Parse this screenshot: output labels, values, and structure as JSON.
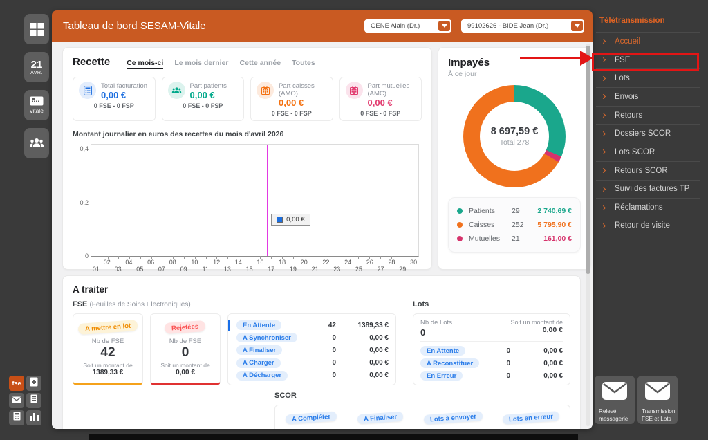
{
  "colors": {
    "header_orange": "#c95a22",
    "menu_accent": "#e06323",
    "annotation_red": "#e31515"
  },
  "header": {
    "title": "Tableau de bord SESAM-Vitale",
    "selects": [
      {
        "value": "GENE Alain (Dr.)"
      },
      {
        "value": "99102626 - BIDE Jean (Dr.)"
      }
    ]
  },
  "left_toolbar": {
    "calendar": {
      "day": "21",
      "month": "AVR."
    },
    "vitale_label": "vitale",
    "fse_label": "fse"
  },
  "recette": {
    "title": "Recette",
    "tabs": [
      {
        "label": "Ce mois-ci",
        "active": true
      },
      {
        "label": "Le mois dernier",
        "active": false
      },
      {
        "label": "Cette année",
        "active": false
      },
      {
        "label": "Toutes",
        "active": false
      }
    ],
    "stats": [
      {
        "icon": "calculator",
        "label": "Total facturation",
        "value": "0,00 €",
        "sub": "0 FSE - 0 FSP",
        "color": "#1d6fe0",
        "tint": "#e3edfc"
      },
      {
        "icon": "patients",
        "label": "Part patients",
        "value": "0,00 €",
        "sub": "0 FSE - 0 FSP",
        "color": "#00a98b",
        "tint": "#dcf3ee"
      },
      {
        "icon": "building",
        "label": "Part caisses (AMO)",
        "value": "0,00 €",
        "sub": "0 FSE - 0 FSP",
        "color": "#f4700f",
        "tint": "#fdeadd"
      },
      {
        "icon": "building",
        "label": "Part mutuelles (AMC)",
        "value": "0,00 €",
        "sub": "0 FSE - 0 FSP",
        "color": "#e23a6e",
        "tint": "#fbe3ec"
      }
    ],
    "chart_data": {
      "type": "line",
      "title": "Montant journalier en euros des recettes du mois d'avril 2026",
      "x_labels": [
        "01",
        "02",
        "03",
        "04",
        "05",
        "06",
        "07",
        "08",
        "09",
        "10",
        "11",
        "12",
        "13",
        "14",
        "15",
        "16",
        "17",
        "18",
        "19",
        "20",
        "21",
        "22",
        "23",
        "24",
        "25",
        "26",
        "27",
        "28",
        "29",
        "30"
      ],
      "yticks": [
        "0,4",
        "0,2",
        "0"
      ],
      "ylim": [
        0,
        0.44
      ],
      "series": [
        {
          "name": "0,00 €",
          "color": "#1d6fe0",
          "values": []
        }
      ],
      "today_line": {
        "x": 16.6,
        "color": "#e23ae2"
      },
      "legend_box_label": "0,00 €",
      "grid": true,
      "legend_position": "inside-right"
    }
  },
  "impayes": {
    "title": "Impayés",
    "subtitle": "À ce jour",
    "center_value": "8 697,59 €",
    "center_label": "Total 278",
    "chart_data": {
      "type": "pie",
      "title": "Impayés - À ce jour",
      "categories": [
        "Patients",
        "Caisses",
        "Mutuelles"
      ],
      "counts": [
        29,
        252,
        21
      ],
      "values": [
        2740.69,
        5795.9,
        161.0
      ],
      "total_value": 8697.59,
      "total_count": 278,
      "colors": [
        "#1aa78c",
        "#f0711d",
        "#d6336c"
      ],
      "clockwise_order_from_top": [
        "Patients",
        "Mutuelles",
        "Caisses"
      ]
    },
    "legend": [
      {
        "label": "Patients",
        "count": "29",
        "amount": "2 740,69 €",
        "color": "#1aa78c"
      },
      {
        "label": "Caisses",
        "count": "252",
        "amount": "5 795,90 €",
        "color": "#f0711d"
      },
      {
        "label": "Mutuelles",
        "count": "21",
        "amount": "161,00 €",
        "color": "#d6336c"
      }
    ]
  },
  "a_traiter": {
    "title": "A traiter",
    "fse_heading": "FSE",
    "fse_heading_sub": "(Feuilles de Soins Electroniques)",
    "card_lot": {
      "badge": "A mettre en lot",
      "label": "Nb de FSE",
      "count": "42",
      "sub": "Soit un montant de",
      "amount": "1389,33 €",
      "color": "#f5a21b",
      "badge_bg": "#fdf3d8",
      "badge_color": "#f08c00"
    },
    "card_rejected": {
      "badge": "Rejetées",
      "label": "Nb de FSE",
      "count": "0",
      "sub": "Soit un montant de",
      "amount": "0,00 €",
      "color": "#e03131",
      "badge_bg": "#ffe3e3",
      "badge_color": "#fa5252"
    },
    "fse_rows": [
      {
        "badge": "En Attente",
        "count": "42",
        "amount": "1389,33 €"
      },
      {
        "badge": "A Synchroniser",
        "count": "0",
        "amount": "0,00 €"
      },
      {
        "badge": "A Finaliser",
        "count": "0",
        "amount": "0,00 €"
      },
      {
        "badge": "A Charger",
        "count": "0",
        "amount": "0,00 €"
      },
      {
        "badge": "A Décharger",
        "count": "0",
        "amount": "0,00 €"
      }
    ],
    "lots": {
      "heading": "Lots",
      "nb_label": "Nb de Lots",
      "nb_value": "0",
      "amount_label": "Soit un montant de",
      "amount_value": "0,00 €",
      "rows": [
        {
          "badge": "En Attente",
          "count": "0",
          "amount": "0,00 €"
        },
        {
          "badge": "A Reconstituer",
          "count": "0",
          "amount": "0,00 €"
        },
        {
          "badge": "En Erreur",
          "count": "0",
          "amount": "0,00 €"
        }
      ]
    },
    "scor": {
      "heading": "SCOR",
      "pills": [
        "A Compléter",
        "A Finaliser",
        "Lots à envoyer",
        "Lots en erreur"
      ]
    }
  },
  "menu": {
    "heading": "Télétransmission",
    "items": [
      {
        "label": "Accueil",
        "active": true,
        "highlighted": false
      },
      {
        "label": "FSE",
        "active": false,
        "highlighted": true
      },
      {
        "label": "Lots",
        "active": false,
        "highlighted": false
      },
      {
        "label": "Envois",
        "active": false,
        "highlighted": false
      },
      {
        "label": "Retours",
        "active": false,
        "highlighted": false
      },
      {
        "label": "Dossiers SCOR",
        "active": false,
        "highlighted": false
      },
      {
        "label": "Lots SCOR",
        "active": false,
        "highlighted": false
      },
      {
        "label": "Retours SCOR",
        "active": false,
        "highlighted": false
      },
      {
        "label": "Suivi des factures TP",
        "active": false,
        "highlighted": false
      },
      {
        "label": "Réclamations",
        "active": false,
        "highlighted": false
      },
      {
        "label": "Retour de visite",
        "active": false,
        "highlighted": false
      }
    ]
  },
  "bottom_actions": [
    {
      "label": "Relevé messagerie"
    },
    {
      "label": "Transmission FSE et Lots"
    }
  ]
}
